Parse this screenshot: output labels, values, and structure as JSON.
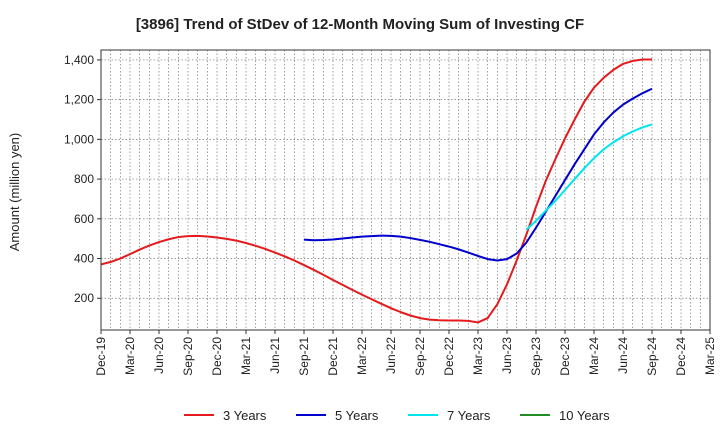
{
  "chart_data": {
    "type": "line",
    "title": "[3896]  Trend of StDev of 12-Month Moving Sum of Investing CF",
    "xlabel": "",
    "ylabel": "Amount (million yen)",
    "ylim": [
      40,
      1450
    ],
    "yticks": [
      200,
      400,
      600,
      800,
      1000,
      1200,
      1400
    ],
    "ytick_labels": [
      "200",
      "400",
      "600",
      "800",
      "1,000",
      "1,200",
      "1,400"
    ],
    "x_start": "2019-12",
    "x_end": "2025-03",
    "xtick_labels": [
      "Dec-19",
      "Mar-20",
      "Jun-20",
      "Sep-20",
      "Dec-20",
      "Mar-21",
      "Jun-21",
      "Sep-21",
      "Dec-21",
      "Mar-22",
      "Jun-22",
      "Sep-22",
      "Dec-22",
      "Mar-23",
      "Jun-23",
      "Sep-23",
      "Dec-23",
      "Mar-24",
      "Jun-24",
      "Sep-24",
      "Dec-24",
      "Mar-25"
    ],
    "grid": true,
    "legend_position": "bottom",
    "series": [
      {
        "name": "3 Years",
        "color": "#e41a1c",
        "points": [
          [
            "2019-12",
            370
          ],
          [
            "2020-01",
            383
          ],
          [
            "2020-02",
            400
          ],
          [
            "2020-03",
            422
          ],
          [
            "2020-04",
            445
          ],
          [
            "2020-05",
            465
          ],
          [
            "2020-06",
            483
          ],
          [
            "2020-07",
            497
          ],
          [
            "2020-08",
            508
          ],
          [
            "2020-09",
            513
          ],
          [
            "2020-10",
            514
          ],
          [
            "2020-11",
            511
          ],
          [
            "2020-12",
            506
          ],
          [
            "2021-01",
            499
          ],
          [
            "2021-02",
            490
          ],
          [
            "2021-03",
            478
          ],
          [
            "2021-04",
            464
          ],
          [
            "2021-05",
            448
          ],
          [
            "2021-06",
            430
          ],
          [
            "2021-07",
            411
          ],
          [
            "2021-08",
            390
          ],
          [
            "2021-09",
            367
          ],
          [
            "2021-10",
            343
          ],
          [
            "2021-11",
            318
          ],
          [
            "2021-12",
            292
          ],
          [
            "2022-01",
            267
          ],
          [
            "2022-02",
            242
          ],
          [
            "2022-03",
            218
          ],
          [
            "2022-04",
            195
          ],
          [
            "2022-05",
            172
          ],
          [
            "2022-06",
            150
          ],
          [
            "2022-07",
            130
          ],
          [
            "2022-08",
            113
          ],
          [
            "2022-09",
            100
          ],
          [
            "2022-10",
            92
          ],
          [
            "2022-11",
            89
          ],
          [
            "2022-12",
            88
          ],
          [
            "2023-01",
            88
          ],
          [
            "2023-02",
            86
          ],
          [
            "2023-03",
            78
          ],
          [
            "2023-04",
            100
          ],
          [
            "2023-05",
            170
          ],
          [
            "2023-06",
            270
          ],
          [
            "2023-07",
            390
          ],
          [
            "2023-08",
            520
          ],
          [
            "2023-09",
            660
          ],
          [
            "2023-10",
            790
          ],
          [
            "2023-11",
            900
          ],
          [
            "2023-12",
            1005
          ],
          [
            "2024-01",
            1100
          ],
          [
            "2024-02",
            1190
          ],
          [
            "2024-03",
            1260
          ],
          [
            "2024-04",
            1310
          ],
          [
            "2024-05",
            1350
          ],
          [
            "2024-06",
            1380
          ],
          [
            "2024-07",
            1395
          ],
          [
            "2024-08",
            1402
          ],
          [
            "2024-09",
            1402
          ]
        ]
      },
      {
        "name": "5 Years",
        "color": "#0000cc",
        "points": [
          [
            "2021-09",
            495
          ],
          [
            "2021-10",
            492
          ],
          [
            "2021-11",
            493
          ],
          [
            "2021-12",
            496
          ],
          [
            "2022-01",
            501
          ],
          [
            "2022-02",
            506
          ],
          [
            "2022-03",
            510
          ],
          [
            "2022-04",
            513
          ],
          [
            "2022-05",
            515
          ],
          [
            "2022-06",
            514
          ],
          [
            "2022-07",
            510
          ],
          [
            "2022-08",
            503
          ],
          [
            "2022-09",
            494
          ],
          [
            "2022-10",
            484
          ],
          [
            "2022-11",
            472
          ],
          [
            "2022-12",
            460
          ],
          [
            "2023-01",
            446
          ],
          [
            "2023-02",
            430
          ],
          [
            "2023-03",
            413
          ],
          [
            "2023-04",
            397
          ],
          [
            "2023-05",
            390
          ],
          [
            "2023-06",
            397
          ],
          [
            "2023-07",
            425
          ],
          [
            "2023-08",
            480
          ],
          [
            "2023-09",
            555
          ],
          [
            "2023-10",
            635
          ],
          [
            "2023-11",
            715
          ],
          [
            "2023-12",
            795
          ],
          [
            "2024-01",
            875
          ],
          [
            "2024-02",
            950
          ],
          [
            "2024-03",
            1025
          ],
          [
            "2024-04",
            1085
          ],
          [
            "2024-05",
            1135
          ],
          [
            "2024-06",
            1175
          ],
          [
            "2024-07",
            1205
          ],
          [
            "2024-08",
            1232
          ],
          [
            "2024-09",
            1255
          ]
        ]
      },
      {
        "name": "7 Years",
        "color": "#00e5ee",
        "points": [
          [
            "2023-08",
            545
          ],
          [
            "2023-09",
            590
          ],
          [
            "2023-10",
            640
          ],
          [
            "2023-11",
            690
          ],
          [
            "2023-12",
            745
          ],
          [
            "2024-01",
            800
          ],
          [
            "2024-02",
            855
          ],
          [
            "2024-03",
            905
          ],
          [
            "2024-04",
            950
          ],
          [
            "2024-05",
            985
          ],
          [
            "2024-06",
            1015
          ],
          [
            "2024-07",
            1040
          ],
          [
            "2024-08",
            1060
          ],
          [
            "2024-09",
            1075
          ]
        ]
      },
      {
        "name": "10 Years",
        "color": "#228b22",
        "points": []
      }
    ]
  }
}
